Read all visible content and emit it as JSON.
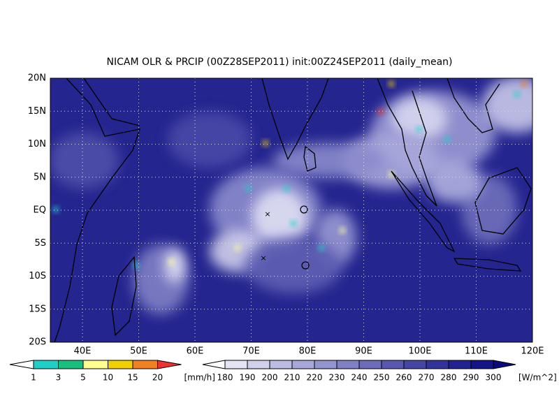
{
  "title": "NICAM OLR & PRCIP (00Z28SEP2011) init:00Z24SEP2011 (daily_mean)",
  "lon_labels": [
    "40E",
    "50E",
    "60E",
    "70E",
    "80E",
    "90E",
    "100E",
    "110E",
    "120E"
  ],
  "lat_labels": [
    "20N",
    "15N",
    "10N",
    "5N",
    "EQ",
    "5S",
    "10S",
    "15S",
    "20S"
  ],
  "precip_scale": {
    "values": [
      1,
      3,
      5,
      10,
      15,
      20
    ],
    "unit": "[mm/h]",
    "colors": [
      "#ffffff",
      "#20d0c8",
      "#18c080",
      "#ffff90",
      "#f0d000",
      "#f08020",
      "#f03030"
    ]
  },
  "olr_scale": {
    "values": [
      180,
      190,
      200,
      210,
      220,
      230,
      240,
      250,
      260,
      270,
      280,
      290,
      300
    ],
    "unit": "[W/m^2]",
    "colors": [
      "#ffffff",
      "#e4e4f4",
      "#d0d0ea",
      "#bcbce2",
      "#a8a8d8",
      "#9494ce",
      "#8080c4",
      "#6c6cba",
      "#5858b0",
      "#4545a6",
      "#33339c",
      "#222292",
      "#141488",
      "#0a0a7c"
    ]
  }
}
